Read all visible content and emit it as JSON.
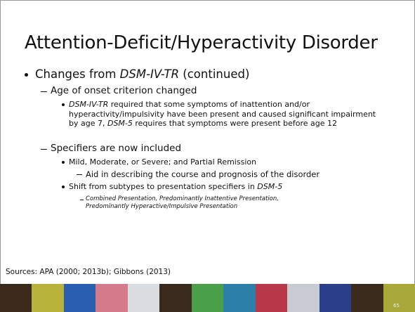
{
  "title": "Attention-Deficit/Hyperactivity Disorder",
  "items": [
    {
      "level": 1,
      "runs": [
        {
          "text": "Changes from "
        },
        {
          "text": "DSM-IV-TR",
          "italic": true
        },
        {
          "text": " (continued)"
        }
      ]
    },
    {
      "level": 2,
      "runs": [
        {
          "text": "Age of onset criterion changed"
        }
      ]
    },
    {
      "level": 3,
      "runs": [
        {
          "text": "DSM-IV-TR",
          "italic": true
        },
        {
          "text": " required that some symptoms of inattention and/or hyperactivity/impulsivity have been present and caused significant impairment by age 7, "
        },
        {
          "text": "DSM-5",
          "italic": true
        },
        {
          "text": " requires that symptoms were present before age 12"
        }
      ]
    },
    {
      "level": 2,
      "runs": [
        {
          "text": "Specifiers are now included"
        }
      ]
    },
    {
      "level": 3,
      "runs": [
        {
          "text": "Mild, Moderate, or Severe; and Partial Remission"
        }
      ]
    },
    {
      "level": 4,
      "runs": [
        {
          "text": "Aid in describing the course and prognosis of the disorder"
        }
      ]
    },
    {
      "level": 3,
      "runs": [
        {
          "text": "Shift from subtypes to presentation specifiers in "
        },
        {
          "text": "DSM-5",
          "italic": true
        }
      ]
    },
    {
      "level": 5,
      "runs": [
        {
          "text": "Combined Presentation, Predominantly Inattentive Presentation, Predominantly Hyperactive/Impulsive Presentation",
          "italic": true
        }
      ]
    }
  ],
  "sources": "Sources: APA (2000; 2013b); Gibbons (2013)",
  "page_number": "65"
}
